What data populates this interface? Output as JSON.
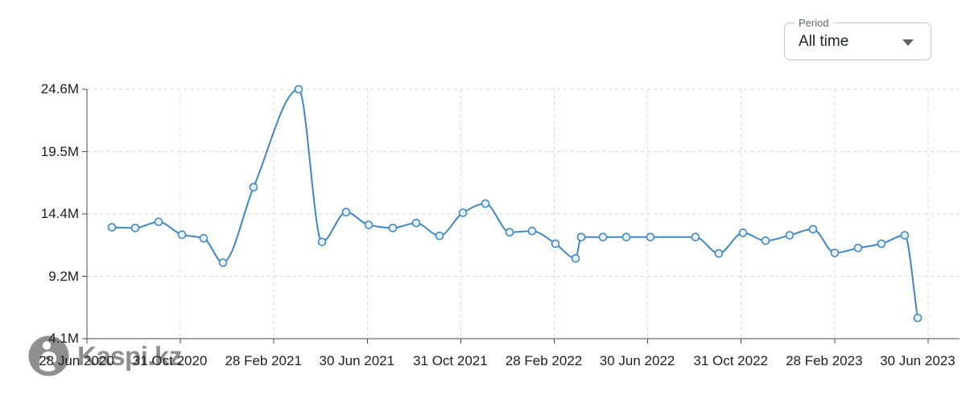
{
  "period_control": {
    "label": "Period",
    "value": "All time"
  },
  "watermark": {
    "brand": "Kaspi.kz"
  },
  "chart_data": {
    "type": "line",
    "title": "",
    "unit": "millions (M)",
    "grid": "dashed",
    "legend_position": "none",
    "line_color": "#3f87c5",
    "marker_fill": "#eaf3fb",
    "axis_color": "#4a4a4a",
    "ylim": [
      4.1,
      24.6
    ],
    "y_tick_labels": [
      "24.6M",
      "19.5M",
      "14.4M",
      "9.2M",
      "4.1M"
    ],
    "y_tick_values": [
      24.6,
      19.5,
      14.4,
      9.2,
      4.1
    ],
    "x_ticks": [
      "28 Jun 2020",
      "31 Oct 2020",
      "28 Feb 2021",
      "30 Jun 2021",
      "31 Oct 2021",
      "28 Feb 2022",
      "30 Jun 2022",
      "31 Oct 2022",
      "28 Feb 2023",
      "30 Jun 2023"
    ],
    "points": [
      {
        "f": 0.0288,
        "v": 13.25
      },
      {
        "f": 0.0557,
        "v": 13.2
      },
      {
        "f": 0.0826,
        "v": 13.7
      },
      {
        "f": 0.1096,
        "v": 12.65
      },
      {
        "f": 0.1346,
        "v": 12.35
      },
      {
        "f": 0.1569,
        "v": 10.35
      },
      {
        "f": 0.1922,
        "v": 16.55
      },
      {
        "f": 0.2442,
        "v": 24.6
      },
      {
        "f": 0.2711,
        "v": 12.05
      },
      {
        "f": 0.299,
        "v": 14.5
      },
      {
        "f": 0.325,
        "v": 13.45
      },
      {
        "f": 0.3528,
        "v": 13.2
      },
      {
        "f": 0.3798,
        "v": 13.6
      },
      {
        "f": 0.4067,
        "v": 12.55
      },
      {
        "f": 0.4336,
        "v": 14.45
      },
      {
        "f": 0.4596,
        "v": 15.2
      },
      {
        "f": 0.4875,
        "v": 12.85
      },
      {
        "f": 0.5135,
        "v": 12.95
      },
      {
        "f": 0.5404,
        "v": 11.9
      },
      {
        "f": 0.5636,
        "v": 10.7
      },
      {
        "f": 0.5701,
        "v": 12.45
      },
      {
        "f": 0.5952,
        "v": 12.45
      },
      {
        "f": 0.6221,
        "v": 12.45
      },
      {
        "f": 0.6499,
        "v": 12.45
      },
      {
        "f": 0.7019,
        "v": 12.45
      },
      {
        "f": 0.7288,
        "v": 11.1
      },
      {
        "f": 0.7567,
        "v": 12.8
      },
      {
        "f": 0.7827,
        "v": 12.15
      },
      {
        "f": 0.8105,
        "v": 12.6
      },
      {
        "f": 0.8374,
        "v": 13.1
      },
      {
        "f": 0.8625,
        "v": 11.15
      },
      {
        "f": 0.8894,
        "v": 11.55
      },
      {
        "f": 0.9164,
        "v": 11.9
      },
      {
        "f": 0.9433,
        "v": 12.6
      },
      {
        "f": 0.9582,
        "v": 5.8
      }
    ]
  }
}
